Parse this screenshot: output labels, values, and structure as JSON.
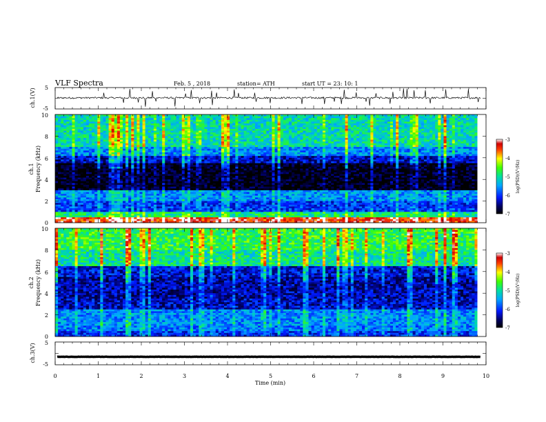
{
  "header": {
    "title": "VLF  Spectra",
    "date": "Feb. 5  , 2018",
    "station": "station= ATH",
    "start_ut": "start  UT  =    23: 10: 1"
  },
  "chart_data": [
    {
      "id": "ch1_waveform",
      "type": "line",
      "ylabel": "ch.1(V)",
      "yticks": [
        "5",
        "-5"
      ],
      "ylim": [
        -5,
        5
      ],
      "xlim": [
        0,
        10
      ],
      "baseline": 0.2,
      "noise": 0.4,
      "spike_count": 40,
      "series_color": "#000000"
    },
    {
      "id": "ch1_spectrogram",
      "type": "heatmap",
      "ylabel": "Frequency  (kHz)",
      "ylabel_channel": "ch.1",
      "yticks": [
        "0",
        "2",
        "4",
        "6",
        "8",
        "10"
      ],
      "ylim": [
        0,
        10
      ],
      "xlim": [
        0,
        9.8
      ],
      "colorbar": {
        "label": "log(PSD)(V²/Hz)",
        "ticks": [
          "-3",
          "-4",
          "-5",
          "-6",
          "-7"
        ],
        "range": [
          -7,
          -3
        ]
      },
      "bands": [
        {
          "f": [
            0,
            0.5
          ],
          "level": -3.4
        },
        {
          "f": [
            0.5,
            1.0
          ],
          "level": -4.9
        },
        {
          "f": [
            1.0,
            2.0
          ],
          "level": -6.0
        },
        {
          "f": [
            2.0,
            3.0
          ],
          "level": -5.6
        },
        {
          "f": [
            3.0,
            5.5
          ],
          "level": -6.9
        },
        {
          "f": [
            5.5,
            6.2
          ],
          "level": -6.3
        },
        {
          "f": [
            6.2,
            7.0
          ],
          "level": -5.6
        },
        {
          "f": [
            7.0,
            10.0
          ],
          "level": -5.1
        }
      ]
    },
    {
      "id": "ch2_spectrogram",
      "type": "heatmap",
      "ylabel": "Frequency  (kHz)",
      "ylabel_channel": "ch.2",
      "yticks": [
        "0",
        "2",
        "4",
        "6",
        "8",
        "10"
      ],
      "ylim": [
        0,
        10
      ],
      "xlim": [
        0,
        9.8
      ],
      "colorbar": {
        "label": "log(PSD)(V²/Hz)",
        "ticks": [
          "-3",
          "-4",
          "-5",
          "-6",
          "-7"
        ],
        "range": [
          -7,
          -3
        ]
      },
      "bands": [
        {
          "f": [
            0,
            0.5
          ],
          "level": -6.0
        },
        {
          "f": [
            0.5,
            1.0
          ],
          "level": -5.7
        },
        {
          "f": [
            1.0,
            2.5
          ],
          "level": -5.6
        },
        {
          "f": [
            2.5,
            3.5
          ],
          "level": -6.3
        },
        {
          "f": [
            3.5,
            5.5
          ],
          "level": -6.4
        },
        {
          "f": [
            5.5,
            6.5
          ],
          "level": -6.2
        },
        {
          "f": [
            6.5,
            8.0
          ],
          "level": -5.0
        },
        {
          "f": [
            8.0,
            10.0
          ],
          "level": -4.7
        }
      ]
    },
    {
      "id": "ch3_waveform",
      "type": "line",
      "ylabel": "ch.3(V)",
      "yticks": [
        "5",
        "-5"
      ],
      "ylim": [
        -5,
        5
      ],
      "xlim": [
        0,
        10
      ],
      "baseline": -1.5,
      "noise": 0.05,
      "spike_count": 0,
      "series_color": "#000000"
    }
  ],
  "x_axis": {
    "label": "Time  (min)",
    "ticks": [
      "0",
      "1",
      "2",
      "3",
      "4",
      "5",
      "6",
      "7",
      "8",
      "9",
      "10"
    ],
    "range": [
      0,
      10
    ]
  }
}
